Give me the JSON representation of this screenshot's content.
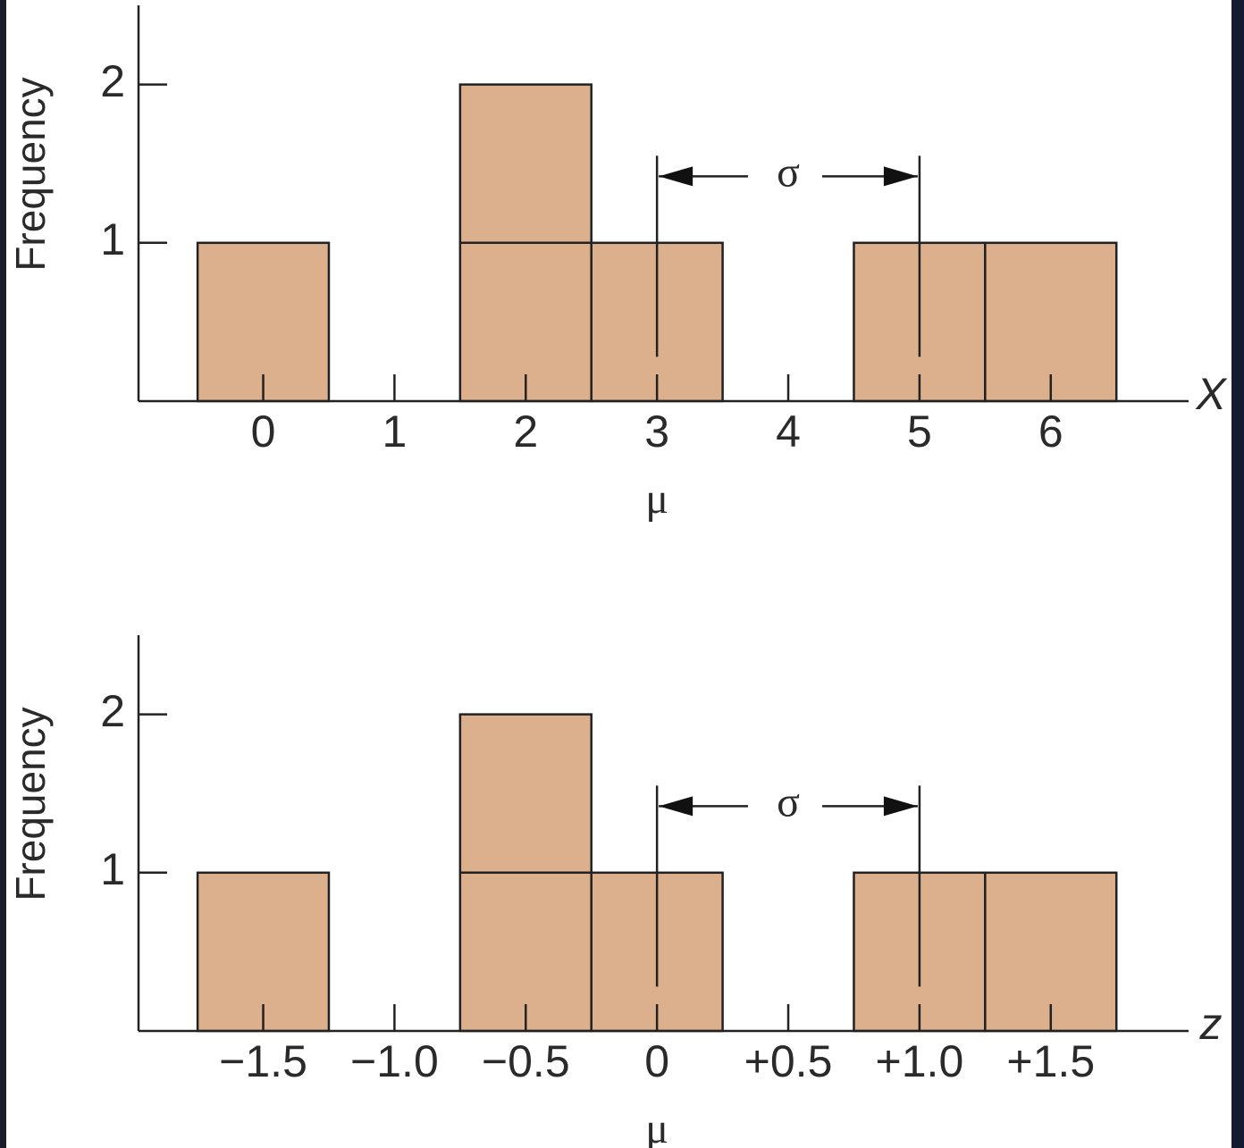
{
  "chart_data": [
    {
      "type": "bar",
      "x": [
        0,
        1,
        2,
        3,
        4,
        5,
        6
      ],
      "values": [
        1,
        0,
        2,
        1,
        0,
        1,
        1
      ],
      "xlim": [
        -0.95,
        7.05
      ],
      "xticks": [
        0,
        1,
        2,
        3,
        4,
        5,
        6
      ],
      "ylim": [
        0,
        2.5
      ],
      "yticks": [
        1,
        2
      ],
      "x_label": "X",
      "y_label": "Frequency",
      "color": "#dcb08d",
      "mean": 3,
      "sd": 2,
      "mean_label": "μ",
      "sd_label": "σ"
    },
    {
      "type": "bar",
      "x": [
        -1.5,
        -1,
        -0.5,
        0,
        0.5,
        1,
        1.5
      ],
      "values": [
        1,
        0,
        2,
        1,
        0,
        1,
        1
      ],
      "xlim": [
        -1.975,
        2.025
      ],
      "xticks": [
        {
          "value": -1.5,
          "label": "−1.5"
        },
        {
          "value": -1,
          "label": "−1.0"
        },
        {
          "value": -0.5,
          "label": "−0.5"
        },
        0,
        {
          "value": 0.5,
          "label": "+0.5"
        },
        {
          "value": 1,
          "label": "+1.0"
        },
        {
          "value": 1.5,
          "label": "+1.5"
        }
      ],
      "ylim": [
        0,
        2.5
      ],
      "yticks": [
        1,
        2
      ],
      "x_label": "z",
      "y_label": "Frequency",
      "color": "#dcb08d",
      "mean": 0,
      "sd": 1,
      "mean_label": "μ",
      "sd_label": "σ"
    }
  ]
}
